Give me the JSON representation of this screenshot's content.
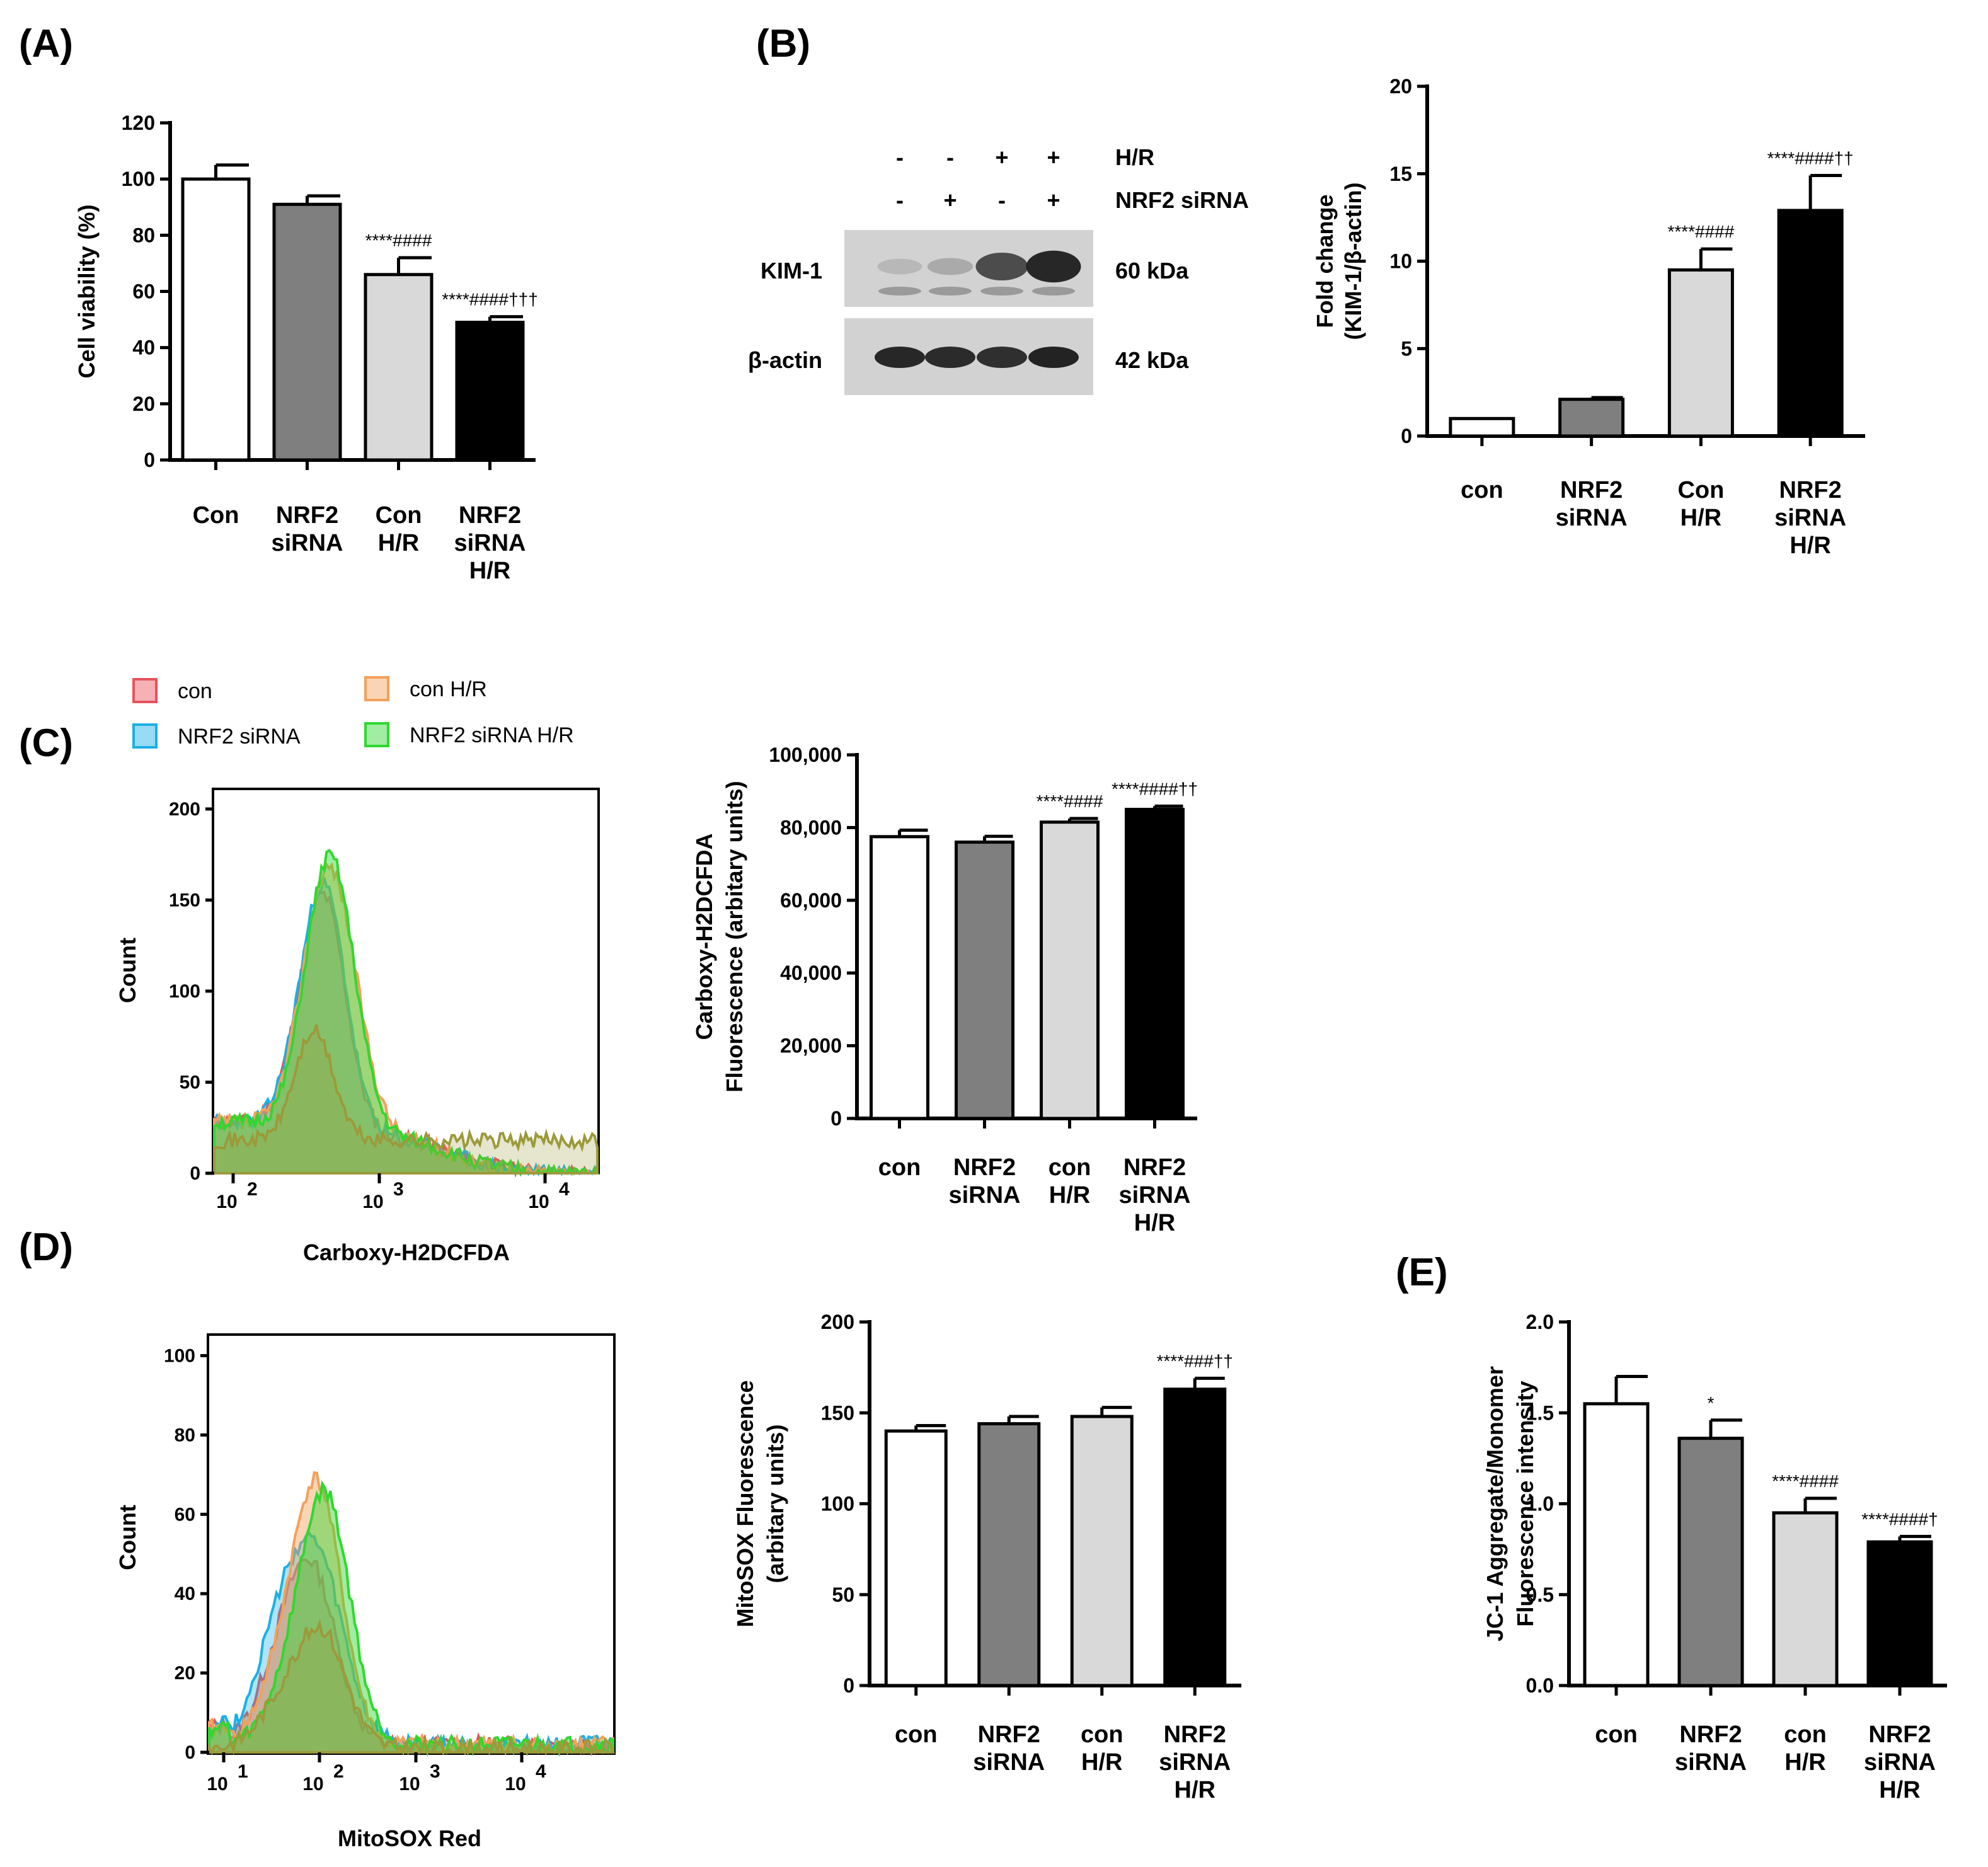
{
  "panel_labels": {
    "A": "(A)",
    "B": "(B)",
    "C": "(C)",
    "D": "(D)",
    "E": "(E)"
  },
  "chart_data": [
    {
      "id": "A",
      "type": "bar",
      "ylabel": "Cell viability (%)",
      "ylim": [
        0,
        120
      ],
      "yticks": [
        "0",
        "20",
        "40",
        "60",
        "80",
        "100",
        "120"
      ],
      "categories": [
        [
          "Con"
        ],
        [
          "NRF2",
          "siRNA"
        ],
        [
          "Con",
          "H/R"
        ],
        [
          "NRF2",
          "siRNA",
          "H/R"
        ]
      ],
      "values": [
        100,
        91,
        66,
        49
      ],
      "errors": [
        5,
        3,
        6,
        2
      ],
      "annotations": [
        "",
        "",
        "****####",
        "****####†††"
      ],
      "colors": [
        "#ffffff",
        "#7f7f7f",
        "#d9d9d9",
        "#000000"
      ]
    },
    {
      "id": "B",
      "type": "bar",
      "ylabel": "Fold change",
      "ylabel2": "(KIM-1/β-actin)",
      "ylim": [
        0,
        20
      ],
      "yticks": [
        "0",
        "5",
        "10",
        "15",
        "20"
      ],
      "categories": [
        [
          "con"
        ],
        [
          "NRF2",
          "siRNA"
        ],
        [
          "Con",
          "H/R"
        ],
        [
          "NRF2",
          "siRNA",
          "H/R"
        ]
      ],
      "values": [
        1.0,
        2.1,
        9.5,
        12.9
      ],
      "errors": [
        0,
        0.1,
        1.2,
        2.0
      ],
      "annotations": [
        "",
        "",
        "****####",
        "****####††"
      ],
      "colors": [
        "#ffffff",
        "#7f7f7f",
        "#d9d9d9",
        "#000000"
      ]
    },
    {
      "id": "C",
      "type": "bar",
      "ylabel": "Carboxy-H2DCFDA",
      "ylabel2": "Fluorescence (arbitary units)",
      "ylim": [
        0,
        100000
      ],
      "yticks": [
        "0",
        "20,000",
        "40,000",
        "60,000",
        "80,000",
        "100,000"
      ],
      "categories": [
        [
          "con"
        ],
        [
          "NRF2",
          "siRNA"
        ],
        [
          "con",
          "H/R"
        ],
        [
          "NRF2",
          "siRNA",
          "H/R"
        ]
      ],
      "values": [
        77500,
        76000,
        81500,
        85000
      ],
      "errors": [
        1800,
        1600,
        1000,
        900
      ],
      "annotations": [
        "",
        "",
        "****####",
        "****####††"
      ],
      "colors": [
        "#ffffff",
        "#7f7f7f",
        "#d9d9d9",
        "#000000"
      ]
    },
    {
      "id": "D",
      "type": "bar",
      "ylabel": "MitoSOX Fluorescence",
      "ylabel2": "(arbitary units)",
      "ylim": [
        0,
        200
      ],
      "yticks": [
        "0",
        "50",
        "100",
        "150",
        "200"
      ],
      "categories": [
        [
          "con"
        ],
        [
          "NRF2",
          "siRNA"
        ],
        [
          "con",
          "H/R"
        ],
        [
          "NRF2",
          "siRNA",
          "H/R"
        ]
      ],
      "values": [
        140,
        144,
        148,
        163
      ],
      "errors": [
        3,
        4,
        5,
        6
      ],
      "annotations": [
        "",
        "",
        "",
        "****###††"
      ],
      "colors": [
        "#ffffff",
        "#7f7f7f",
        "#d9d9d9",
        "#000000"
      ]
    },
    {
      "id": "E",
      "type": "bar",
      "ylabel": "JC-1 Aggregate/Monomer",
      "ylabel2": "Fluorescence intensity",
      "ylim": [
        0,
        2.0
      ],
      "yticks": [
        "0.0",
        "0.5",
        "1.0",
        "1.5",
        "2.0"
      ],
      "categories": [
        [
          "con"
        ],
        [
          "NRF2",
          "siRNA"
        ],
        [
          "con",
          "H/R"
        ],
        [
          "NRF2",
          "siRNA",
          "H/R"
        ]
      ],
      "values": [
        1.55,
        1.36,
        0.95,
        0.79
      ],
      "errors": [
        0.15,
        0.1,
        0.08,
        0.03
      ],
      "annotations": [
        "",
        "*",
        "****####",
        "****####†"
      ],
      "colors": [
        "#ffffff",
        "#7f7f7f",
        "#d9d9d9",
        "#000000"
      ]
    }
  ],
  "western_blot": {
    "row1_label": "H/R",
    "row2_label": "NRF2 siRNA",
    "row1_signs": [
      "-",
      "-",
      "+",
      "+"
    ],
    "row2_signs": [
      "-",
      "+",
      "-",
      "+"
    ],
    "band1_label": "KIM-1",
    "band1_size": "60 kDa",
    "band2_label": "β-actin",
    "band2_size": "42 kDa",
    "kim1_intensity": [
      0.15,
      0.22,
      0.75,
      0.95
    ],
    "actin_intensity": [
      0.9,
      0.88,
      0.86,
      0.92
    ]
  },
  "flow_C": {
    "legend": [
      "con",
      "NRF2 siRNA",
      "con H/R",
      "NRF2 siRNA H/R"
    ],
    "legend_colors": [
      "#e8525a",
      "#1ab0e6",
      "#f2a15a",
      "#2fd82f"
    ],
    "ylabel": "Count",
    "xlabel": "Carboxy-H2DCFDA",
    "yticks": [
      "0",
      "50",
      "100",
      "150",
      "200"
    ],
    "xticks": [
      {
        "base": "10",
        "exp": "2"
      },
      {
        "base": "10",
        "exp": "3"
      },
      {
        "base": "10",
        "exp": "4"
      }
    ]
  },
  "flow_D": {
    "ylabel": "Count",
    "xlabel": "MitoSOX Red",
    "yticks": [
      "0",
      "20",
      "40",
      "60",
      "80",
      "100"
    ],
    "xticks": [
      {
        "base": "10",
        "exp": "1"
      },
      {
        "base": "10",
        "exp": "2"
      },
      {
        "base": "10",
        "exp": "3"
      },
      {
        "base": "10",
        "exp": "4"
      }
    ]
  }
}
